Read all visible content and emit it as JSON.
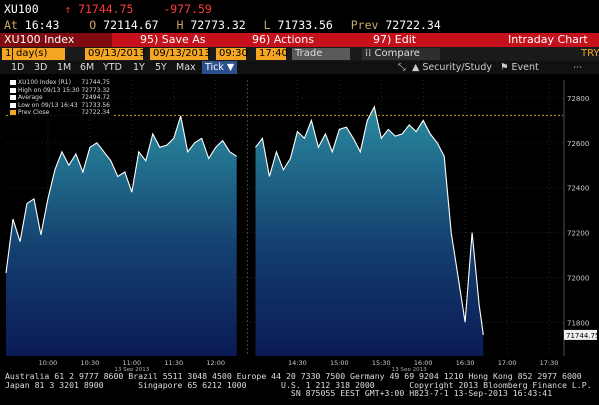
{
  "quote": {
    "ticker": "XU100",
    "last": "71744.75",
    "change": "-977.59",
    "time_label": "At",
    "time": "16:43",
    "open_label": "O",
    "open": "72114.67",
    "high_label": "H",
    "high": "72773.32",
    "low_label": "L",
    "low": "71733.56",
    "prev_label": "Prev",
    "prev": "72722.34"
  },
  "menu": {
    "security": "XU100 Index",
    "save": "95) Save As",
    "actions": "96) Actions",
    "edit": "97) Edit",
    "title": "Intraday Chart"
  },
  "controls": {
    "period": "1",
    "period_unit": "day(s)",
    "start_date": "09/13/2013",
    "end_date": "09/13/2013",
    "start_time": "09:30",
    "end_time": "17:40",
    "type": "Trade",
    "compare": "Compare",
    "currency": "TRY"
  },
  "ranges": [
    "1D",
    "3D",
    "1M",
    "6M",
    "YTD",
    "1Y",
    "5Y",
    "Max"
  ],
  "active_range": "Tick",
  "tools": {
    "security_study": "Security/Study",
    "event": "Event"
  },
  "legend": [
    {
      "label": "XU100 Index (R1)",
      "value": "71744.75",
      "color": "#ffffff"
    },
    {
      "label": "High on 09/13 15:30",
      "value": "72773.32",
      "color": "#ffffff"
    },
    {
      "label": "Average",
      "value": "72494.72",
      "color": "#ffffff"
    },
    {
      "label": "Low on 09/13 16:43",
      "value": "71733.56",
      "color": "#ffffff"
    },
    {
      "label": "Prev Close",
      "value": "72722.34",
      "color": "#f5a623"
    }
  ],
  "chart_data": {
    "type": "area",
    "y_ticks": [
      "72800",
      "72600",
      "72400",
      "72200",
      "72000",
      "71800"
    ],
    "x_ticks": [
      "10:00",
      "10:30",
      "11:00",
      "11:30",
      "12:00",
      "14:30",
      "15:00",
      "15:30",
      "16:00",
      "16:30",
      "17:00",
      "17:30"
    ],
    "x_date_label": "13 Sep 2013",
    "last_value_label": "71744.75",
    "prev_close": 72722.34,
    "ylim": [
      71650,
      72880
    ],
    "grid": true,
    "session1": {
      "x": [
        "09:30",
        "09:35",
        "09:40",
        "09:45",
        "09:50",
        "09:55",
        "10:00",
        "10:05",
        "10:10",
        "10:15",
        "10:20",
        "10:25",
        "10:30",
        "10:35",
        "10:40",
        "10:45",
        "10:50",
        "10:55",
        "11:00",
        "11:05",
        "11:10",
        "11:15",
        "11:20",
        "11:25",
        "11:30",
        "11:35",
        "11:40",
        "11:45",
        "11:50",
        "11:55",
        "12:00",
        "12:05",
        "12:10",
        "12:15"
      ],
      "y": [
        72020,
        72260,
        72160,
        72330,
        72350,
        72190,
        72350,
        72480,
        72560,
        72500,
        72550,
        72470,
        72580,
        72600,
        72560,
        72520,
        72450,
        72470,
        72380,
        72560,
        72520,
        72640,
        72580,
        72590,
        72620,
        72720,
        72560,
        72600,
        72620,
        72530,
        72580,
        72610,
        72560,
        72540
      ]
    },
    "session2": {
      "x": [
        "14:00",
        "14:05",
        "14:10",
        "14:15",
        "14:20",
        "14:25",
        "14:30",
        "14:35",
        "14:40",
        "14:45",
        "14:50",
        "14:55",
        "15:00",
        "15:05",
        "15:10",
        "15:15",
        "15:20",
        "15:25",
        "15:30",
        "15:35",
        "15:40",
        "15:45",
        "15:50",
        "15:55",
        "16:00",
        "16:05",
        "16:10",
        "16:15",
        "16:20",
        "16:25",
        "16:30",
        "16:35",
        "16:40",
        "16:43"
      ],
      "y": [
        72580,
        72620,
        72450,
        72560,
        72480,
        72530,
        72650,
        72620,
        72700,
        72580,
        72640,
        72560,
        72660,
        72670,
        72620,
        72560,
        72700,
        72760,
        72620,
        72660,
        72630,
        72640,
        72680,
        72650,
        72700,
        72640,
        72600,
        72540,
        72200,
        72000,
        71800,
        72200,
        71880,
        71744
      ]
    }
  },
  "footer": {
    "line1": "Australia 61 2 9777 8600 Brazil 5511 3048 4500 Europe 44 20 7330 7500 Germany 49 69 9204 1210 Hong Kong 852 2977 6000",
    "line2": "Japan 81 3 3201 8900       Singapore 65 6212 1000       U.S. 1 212 318 2000       Copyright 2013 Bloomberg Finance L.P.",
    "line3": "                                                          SN 875055 EEST GMT+3:00 H823-7-1 13-Sep-2013 16:43:41"
  },
  "colors": {
    "menu_red": "#c4111b",
    "accent_orange": "#f5a623",
    "down_red": "#ff3a3a",
    "area_top": "#2a8aa0",
    "area_bottom": "#0a1a55"
  }
}
